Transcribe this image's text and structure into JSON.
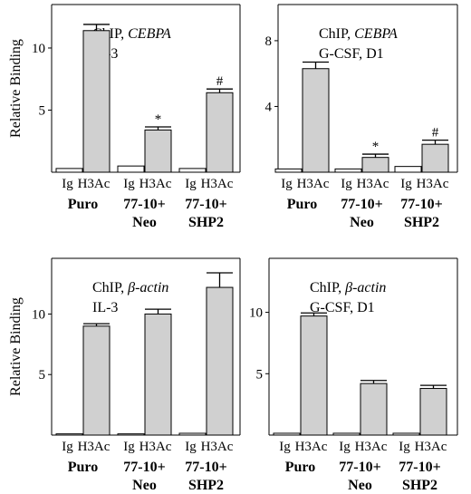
{
  "figure": {
    "ylabel": "Relative Binding",
    "bar_labels": [
      "Ig",
      "H3Ac"
    ],
    "group_labels": [
      [
        "Puro"
      ],
      [
        "77-10+",
        "Neo"
      ],
      [
        "77-10+",
        "SHP2"
      ]
    ]
  },
  "colors": {
    "ig_fill": "#ffffff",
    "h3ac_fill": "#d0d0d0",
    "stroke": "#000000"
  },
  "chart_data": [
    {
      "type": "bar",
      "panel": "top-left",
      "title_prefix": "ChIP, ",
      "gene": "CEBPA",
      "condition": "IL-3",
      "ylabel": "Relative Binding",
      "ylim": [
        0,
        13.5
      ],
      "yticks": [
        5,
        10
      ],
      "categories": [
        "Puro",
        "77-10+ Neo",
        "77-10+ SHP2"
      ],
      "series": [
        {
          "name": "Ig",
          "values": [
            0.3,
            0.5,
            0.3
          ],
          "errors": [
            0,
            0,
            0
          ]
        },
        {
          "name": "H3Ac",
          "values": [
            11.4,
            3.4,
            6.4
          ],
          "errors": [
            0.5,
            0.25,
            0.3
          ]
        }
      ],
      "annotations": [
        "",
        "*",
        "#"
      ]
    },
    {
      "type": "bar",
      "panel": "top-right",
      "title_prefix": "ChIP, ",
      "gene": "CEBPA",
      "condition": "G-CSF, D1",
      "ylabel": "",
      "ylim": [
        0,
        10.2
      ],
      "yticks": [
        4,
        8
      ],
      "categories": [
        "Puro",
        "77-10+ Neo",
        "77-10+ SHP2"
      ],
      "series": [
        {
          "name": "Ig",
          "values": [
            0.2,
            0.2,
            0.35
          ],
          "errors": [
            0,
            0,
            0
          ]
        },
        {
          "name": "H3Ac",
          "values": [
            6.3,
            0.9,
            1.7
          ],
          "errors": [
            0.4,
            0.2,
            0.25
          ]
        }
      ],
      "annotations": [
        "",
        "*",
        "#"
      ]
    },
    {
      "type": "bar",
      "panel": "bottom-left",
      "title_prefix": "ChIP, ",
      "gene": "β-actin",
      "condition": "IL-3",
      "ylabel": "Relative Binding",
      "ylim": [
        0,
        14.6
      ],
      "yticks": [
        5,
        10
      ],
      "categories": [
        "Puro",
        "77-10+ Neo",
        "77-10+ SHP2"
      ],
      "series": [
        {
          "name": "Ig",
          "values": [
            0.1,
            0.1,
            0.15
          ],
          "errors": [
            0,
            0,
            0
          ]
        },
        {
          "name": "H3Ac",
          "values": [
            9.0,
            10.0,
            12.2
          ],
          "errors": [
            0.2,
            0.4,
            1.2
          ]
        }
      ],
      "annotations": [
        "",
        "",
        ""
      ]
    },
    {
      "type": "bar",
      "panel": "bottom-right",
      "title_prefix": "ChIP, ",
      "gene": "β-actin",
      "condition": "G-CSF, D1",
      "ylabel": "",
      "ylim": [
        0,
        14.4
      ],
      "yticks": [
        5,
        10
      ],
      "categories": [
        "Puro",
        "77-10+ Neo",
        "77-10+ SHP2"
      ],
      "series": [
        {
          "name": "Ig",
          "values": [
            0.15,
            0.15,
            0.15
          ],
          "errors": [
            0,
            0,
            0
          ]
        },
        {
          "name": "H3Ac",
          "values": [
            9.7,
            4.2,
            3.8
          ],
          "errors": [
            0.25,
            0.25,
            0.25
          ]
        }
      ],
      "annotations": [
        "",
        "",
        ""
      ]
    }
  ]
}
